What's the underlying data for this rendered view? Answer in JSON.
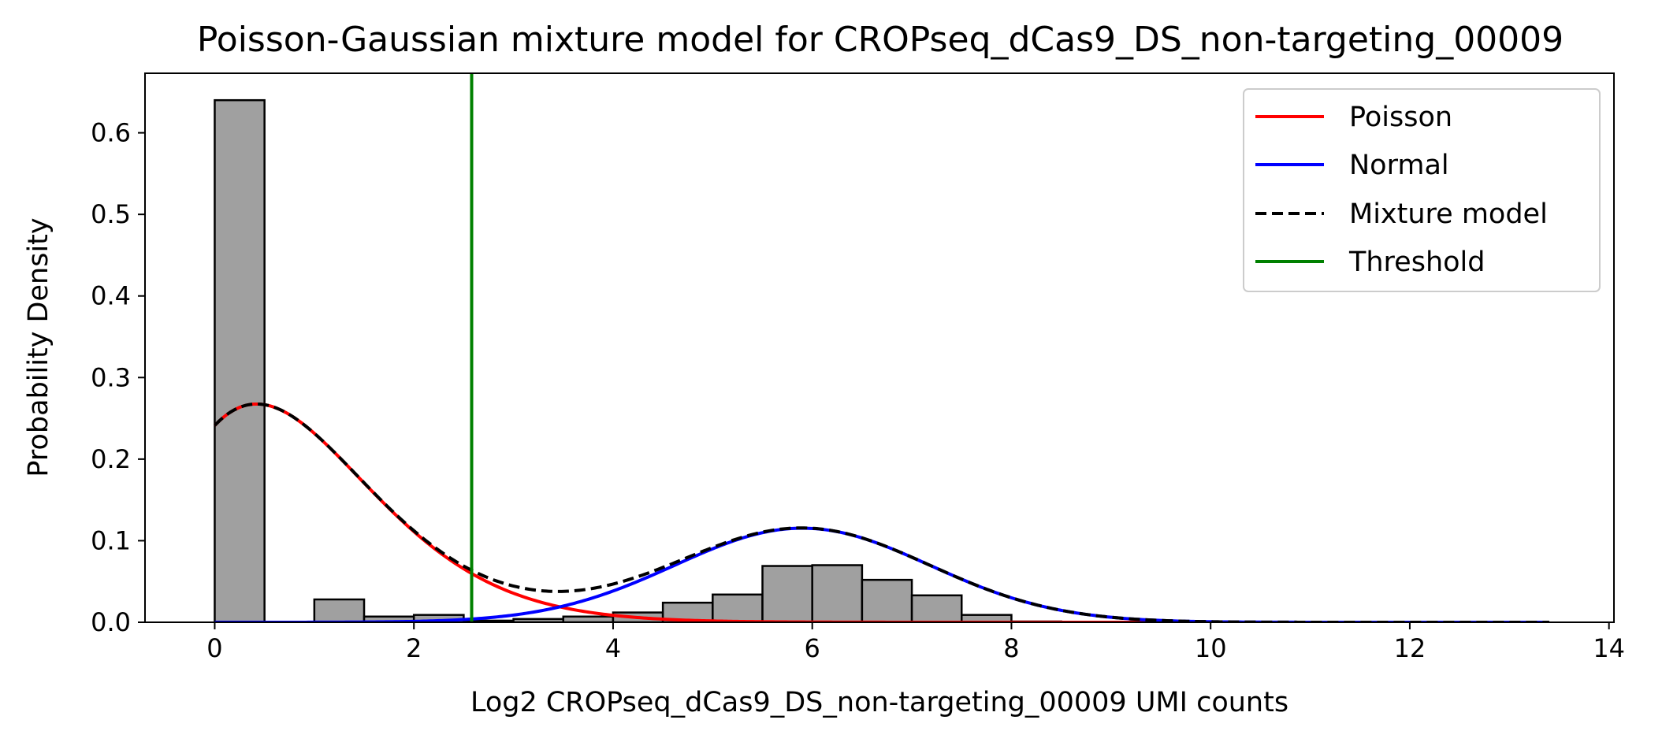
{
  "chart_data": {
    "type": "histogram",
    "title": "Poisson-Gaussian mixture model for CROPseq_dCas9_DS_non-targeting_00009",
    "xlabel": "Log2 CROPseq_dCas9_DS_non-targeting_00009 UMI counts",
    "ylabel": "Probability Density",
    "xlim": [
      -0.7,
      14.05
    ],
    "ylim": [
      0,
      0.673
    ],
    "xticks": [
      0,
      2,
      4,
      6,
      8,
      10,
      12,
      14
    ],
    "yticks": [
      0.0,
      0.1,
      0.2,
      0.3,
      0.4,
      0.5,
      0.6
    ],
    "grid": false,
    "legend_position": "top-right",
    "histogram": {
      "bin_width": 0.5,
      "bin_starts": [
        0,
        0.5,
        1.0,
        1.5,
        2.0,
        2.5,
        3.0,
        3.5,
        4.0,
        4.5,
        5.0,
        5.5,
        6.0,
        6.5,
        7.0,
        7.5,
        8.0
      ],
      "densities": [
        0.64,
        0.0,
        0.028,
        0.007,
        0.009,
        0.002,
        0.004,
        0.007,
        0.012,
        0.024,
        0.034,
        0.069,
        0.07,
        0.052,
        0.033,
        0.009,
        0.001
      ],
      "fill": "#a0a0a0",
      "edge": "#000000"
    },
    "model": {
      "x_max": 13.4,
      "poisson_weight": 0.63,
      "poisson_lambda": 0.96,
      "normal_weight": 0.37,
      "normal_mean": 5.9,
      "normal_sd": 1.28
    },
    "threshold": 2.58,
    "series": [
      {
        "name": "Poisson",
        "color": "#ff0000",
        "style": "solid"
      },
      {
        "name": "Normal",
        "color": "#0000ff",
        "style": "solid"
      },
      {
        "name": "Mixture model",
        "color": "#000000",
        "style": "dashed"
      },
      {
        "name": "Threshold",
        "color": "#008000",
        "style": "solid"
      }
    ]
  }
}
